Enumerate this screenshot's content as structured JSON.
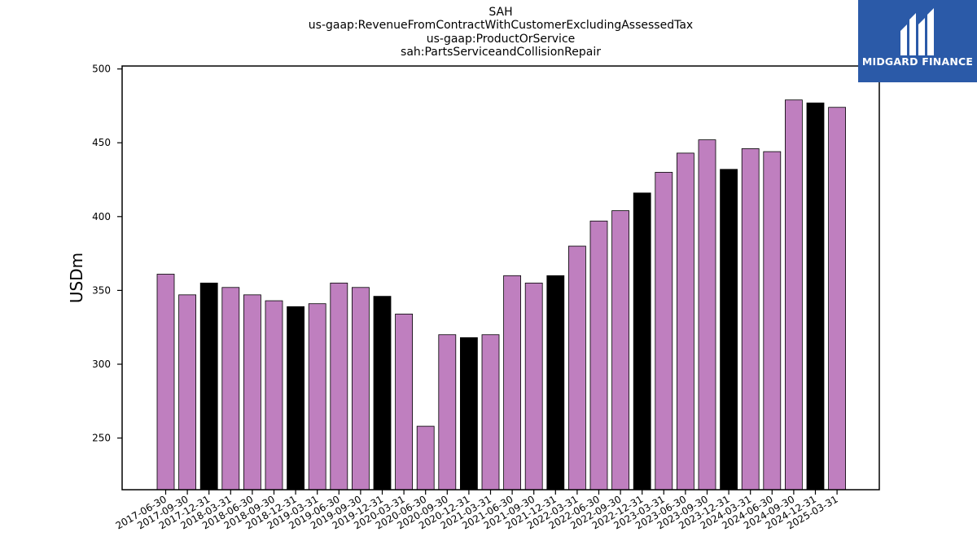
{
  "title_lines": [
    "SAH",
    "us-gaap:RevenueFromContractWithCustomerExcludingAssessedTax",
    "us-gaap:ProductOrService",
    "sah:PartsServiceandCollisionRepair"
  ],
  "logo": {
    "text": "MIDGARD FINANCE",
    "icon": "midgard-logo-icon",
    "background": "#2b5aa8"
  },
  "colors": {
    "bar_default": "#bf7fbf",
    "bar_year_end": "#000000",
    "edge": "#000000"
  },
  "chart_data": {
    "type": "bar",
    "ylabel": "USDm",
    "xlabel": "",
    "ylim": [
      215,
      502
    ],
    "yticks": [
      250,
      300,
      350,
      400,
      450,
      500
    ],
    "grid": false,
    "categories": [
      "2017-06-30",
      "2017-09-30",
      "2017-12-31",
      "2018-03-31",
      "2018-06-30",
      "2018-09-30",
      "2018-12-31",
      "2019-03-31",
      "2019-06-30",
      "2019-09-30",
      "2019-12-31",
      "2020-03-31",
      "2020-06-30",
      "2020-09-30",
      "2020-12-31",
      "2021-03-31",
      "2021-06-30",
      "2021-09-30",
      "2021-12-31",
      "2022-03-31",
      "2022-06-30",
      "2022-09-30",
      "2022-12-31",
      "2023-03-31",
      "2023-06-30",
      "2023-09-30",
      "2023-12-31",
      "2024-03-31",
      "2024-06-30",
      "2024-09-30",
      "2024-12-31",
      "2025-03-31"
    ],
    "values": [
      361,
      347,
      355,
      352,
      347,
      343,
      339,
      341,
      355,
      352,
      346,
      334,
      258,
      320,
      318,
      320,
      360,
      355,
      360,
      380,
      397,
      404,
      416,
      430,
      443,
      452,
      432,
      446,
      444,
      479,
      477,
      474
    ]
  }
}
